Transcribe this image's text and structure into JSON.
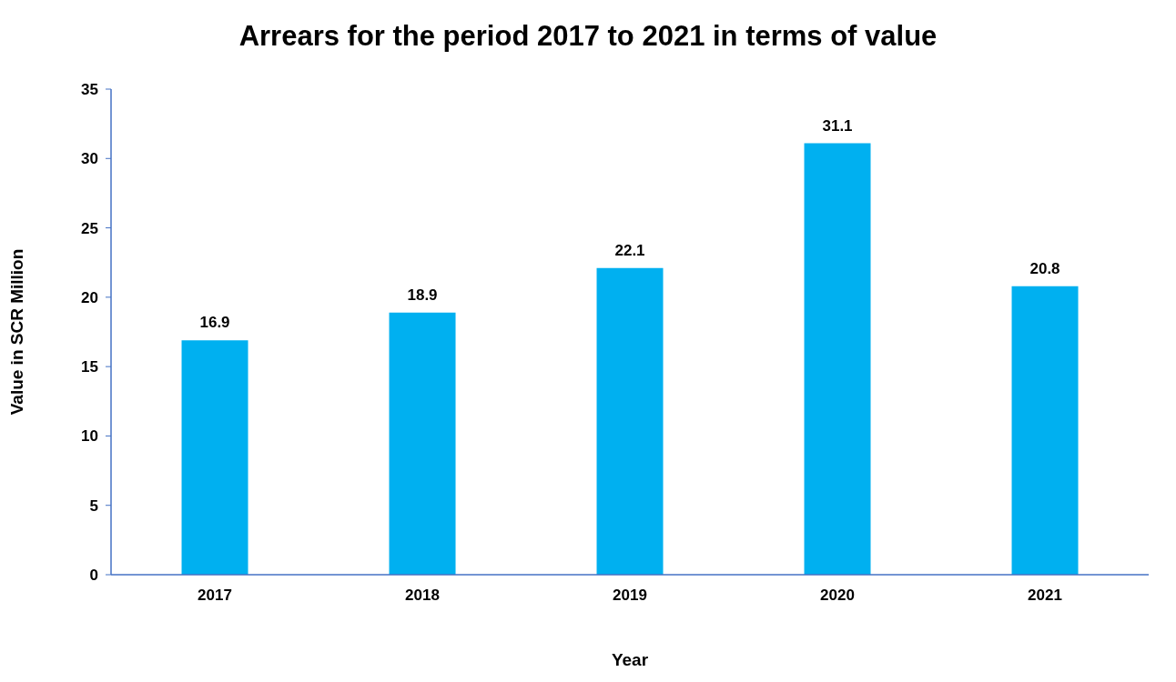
{
  "chart_data": {
    "type": "bar",
    "title": "Arrears for the period 2017 to 2021 in terms of value",
    "xlabel": "Year",
    "ylabel": "Value in SCR Million",
    "categories": [
      "2017",
      "2018",
      "2019",
      "2020",
      "2021"
    ],
    "values": [
      16.9,
      18.9,
      22.1,
      31.1,
      20.8
    ],
    "color": "#00b0f0",
    "ylim": [
      0,
      35
    ],
    "yticks": [
      0,
      5,
      10,
      15,
      20,
      25,
      30,
      35
    ],
    "grid": false,
    "data_labels": true
  }
}
